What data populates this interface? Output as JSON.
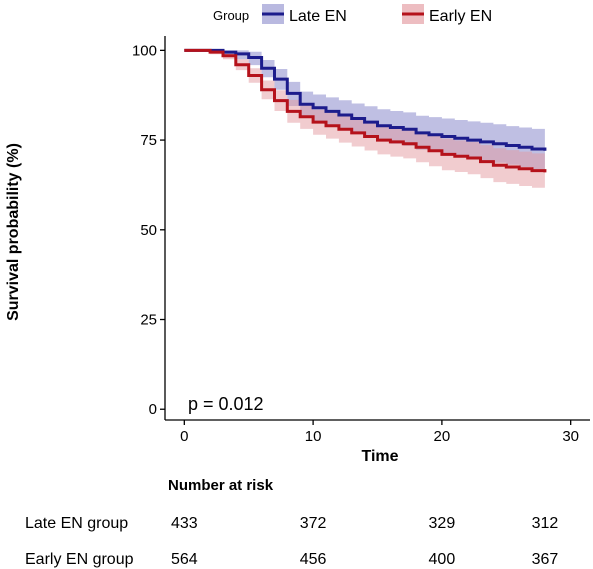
{
  "chart_data": {
    "type": "line",
    "subtype": "kaplan-meier",
    "xlabel": "Time",
    "ylabel": "Survival probability (%)",
    "xlim": [
      -1.5,
      31.5
    ],
    "ylim": [
      -3,
      104
    ],
    "x_ticks": [
      0,
      10,
      20,
      30
    ],
    "y_ticks": [
      0,
      25,
      50,
      75,
      100
    ],
    "legend": {
      "title": "Group",
      "position": "top"
    },
    "grid": false,
    "annotation": "p = 0.012",
    "series": [
      {
        "name": "Late EN",
        "color": "#1c1c8c",
        "band_color": "#7f80c7",
        "x": [
          0,
          1,
          2,
          3,
          4,
          5,
          6,
          7,
          8,
          9,
          10,
          11,
          12,
          13,
          14,
          15,
          16,
          17,
          18,
          19,
          20,
          21,
          22,
          23,
          24,
          25,
          26,
          27,
          28
        ],
        "y": [
          100,
          100,
          100,
          99.5,
          99,
          98,
          95,
          92,
          88,
          85,
          84,
          83,
          82,
          81,
          80,
          79,
          78.5,
          78,
          77,
          76.5,
          76,
          75.5,
          75,
          74.5,
          74,
          73.5,
          73,
          72.5,
          72
        ],
        "lower": [
          100,
          100,
          99.8,
          98.6,
          97.5,
          95.9,
          92.5,
          89,
          84.5,
          81.3,
          80.1,
          79,
          77.9,
          76.8,
          75.7,
          74.6,
          74,
          73.4,
          72.3,
          71.7,
          71.1,
          70.5,
          69.9,
          69.3,
          68.7,
          68.1,
          67.5,
          66.9,
          66.3
        ],
        "upper": [
          100,
          100,
          100,
          100,
          100,
          99.6,
          97.3,
          94.8,
          91.2,
          88.5,
          87.7,
          86.9,
          86.1,
          85.2,
          84.4,
          83.6,
          83.1,
          82.7,
          81.8,
          81.4,
          81,
          80.6,
          80.2,
          79.8,
          79.4,
          78.9,
          78.5,
          78.1,
          77.7
        ]
      },
      {
        "name": "Early EN",
        "color": "#b5121b",
        "band_color": "#e39a9f",
        "x": [
          0,
          1,
          2,
          3,
          4,
          5,
          6,
          7,
          8,
          9,
          10,
          11,
          12,
          13,
          14,
          15,
          16,
          17,
          18,
          19,
          20,
          21,
          22,
          23,
          24,
          25,
          26,
          27,
          28
        ],
        "y": [
          100,
          100,
          99.5,
          98.5,
          96,
          93,
          89,
          86,
          83,
          81.5,
          80,
          79,
          78,
          77,
          76,
          75,
          74.5,
          74,
          73,
          72,
          71,
          70.5,
          70,
          69,
          68,
          67.5,
          67,
          66.5,
          66
        ],
        "lower": [
          100,
          99.9,
          98.9,
          97.5,
          94.5,
          91,
          86.4,
          83.1,
          79.8,
          78.1,
          76.5,
          75.4,
          74.3,
          73.2,
          72.1,
          71,
          70.4,
          69.9,
          68.8,
          67.7,
          66.6,
          66.1,
          65.5,
          64.4,
          63.3,
          62.8,
          62.2,
          61.7,
          61.1
        ],
        "upper": [
          100,
          100,
          100,
          99.5,
          97.5,
          95,
          91.6,
          88.9,
          86.2,
          84.9,
          83.5,
          82.6,
          81.7,
          80.8,
          79.9,
          79,
          78.6,
          78.1,
          77.2,
          76.3,
          75.4,
          74.9,
          74.5,
          73.6,
          72.7,
          72.2,
          71.8,
          71.3,
          70.9
        ]
      }
    ],
    "risk_table": {
      "title": "Number at risk",
      "times": [
        0,
        10,
        20,
        28
      ],
      "rows": [
        {
          "label": "Late EN group",
          "values": [
            "433",
            "372",
            "329",
            "312"
          ]
        },
        {
          "label": "Early EN group",
          "values": [
            "564",
            "456",
            "400",
            "367"
          ]
        }
      ]
    }
  }
}
